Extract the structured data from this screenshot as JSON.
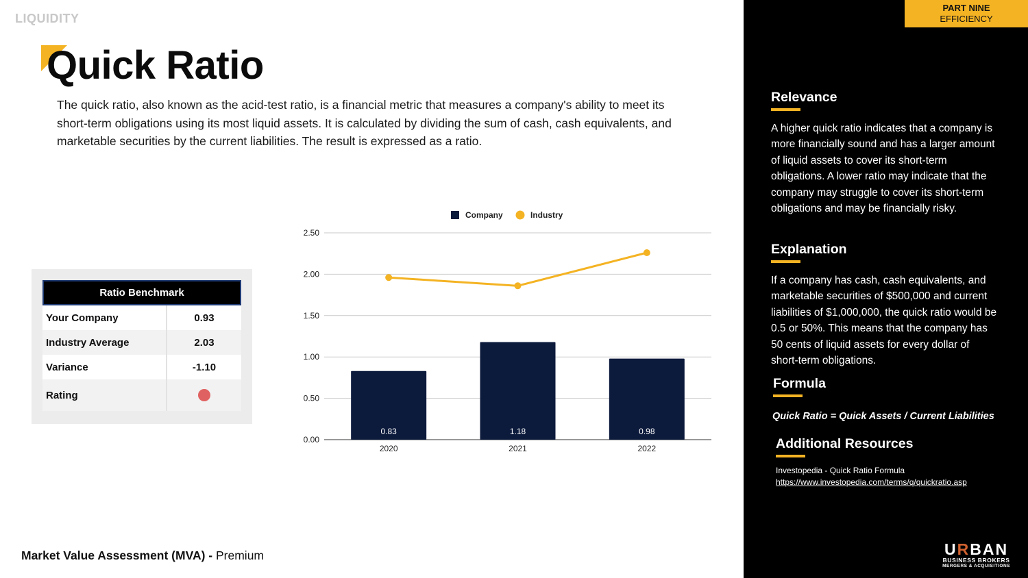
{
  "section_tag": "LIQUIDITY",
  "title": "Quick Ratio",
  "intro": "The quick ratio, also known as the acid-test ratio, is a financial metric that measures a company's ability to meet its short-term obligations using its most liquid assets. It is calculated by dividing the sum of cash, cash equivalents, and marketable securities by the current liabilities. The result is expressed as a ratio.",
  "benchmark": {
    "title": "Ratio Benchmark",
    "rows": [
      {
        "label": "Your Company",
        "value": "0.93"
      },
      {
        "label": "Industry Average",
        "value": "2.03"
      },
      {
        "label": "Variance",
        "value": "-1.10"
      }
    ],
    "rating_label": "Rating",
    "rating_color": "#e06161"
  },
  "chart_data": {
    "type": "bar",
    "categories": [
      "2020",
      "2021",
      "2022"
    ],
    "series": [
      {
        "name": "Company",
        "kind": "bar",
        "color": "#0c1a3c",
        "values": [
          0.83,
          1.18,
          0.98
        ],
        "labels": [
          "0.83",
          "1.18",
          "0.98"
        ]
      },
      {
        "name": "Industry",
        "kind": "line",
        "color": "#f4b323",
        "values": [
          1.96,
          1.86,
          2.26
        ]
      }
    ],
    "ylim": [
      0,
      2.5
    ],
    "yticks": [
      "0.00",
      "0.50",
      "1.00",
      "1.50",
      "2.00",
      "2.50"
    ],
    "ytick_values": [
      0,
      0.5,
      1,
      1.5,
      2,
      2.5
    ],
    "legend": "top",
    "grid": true
  },
  "footer": {
    "bold": "Market Value Assessment (MVA) -",
    "rest": "Premium"
  },
  "side": {
    "part_line1": "PART NINE",
    "part_line2": "EFFICIENCY",
    "relevance_title": "Relevance",
    "relevance_text": "A higher quick ratio indicates that a company is more financially sound and has a larger amount of liquid assets to cover its short-term obligations. A lower ratio may indicate that the company may struggle to cover its short-term obligations and may be financially risky.",
    "explanation_title": "Explanation",
    "explanation_text": "If a company has cash, cash equivalents, and marketable securities of $500,000 and current liabilities of $1,000,000, the quick ratio would be 0.5 or 50%. This means that the company has 50 cents of liquid assets for every dollar of short-term obligations.",
    "formula_title": "Formula",
    "formula_text": "Quick Ratio = Quick Assets / Current Liabilities",
    "resources_title": "Additional Resources",
    "resource_name": "Investopedia - Quick Ratio Formula",
    "resource_url": "https://www.investopedia.com/terms/q/quickratio.asp"
  },
  "logo": {
    "u": "U",
    "r": "R",
    "ban": "BAN",
    "line2": "BUSINESS BROKERS",
    "line3": "MERGERS & ACQUISITIONS"
  }
}
